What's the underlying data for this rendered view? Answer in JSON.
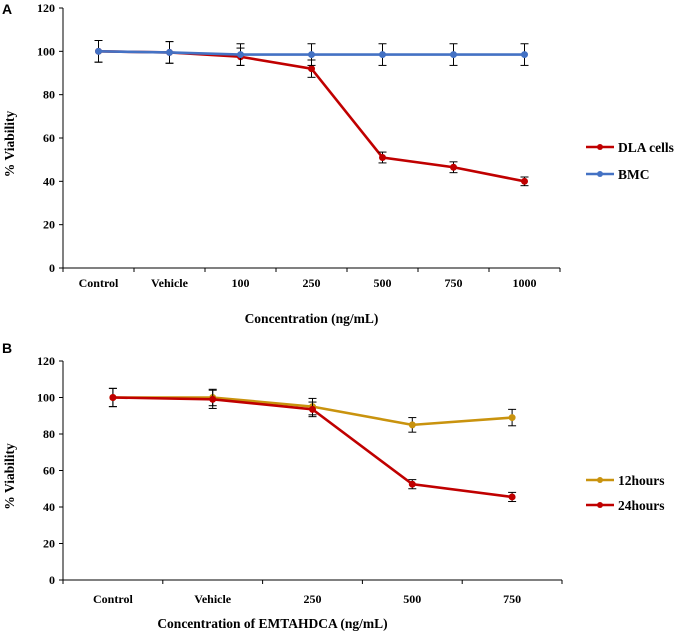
{
  "chart_data": [
    {
      "panel_label": "A",
      "type": "line",
      "categories": [
        "Control",
        "Vehicle",
        "100",
        "250",
        "500",
        "750",
        "1000"
      ],
      "xlabel": "Concentration (ng/mL)",
      "ylabel": "% Viability",
      "ylim": [
        0,
        120
      ],
      "yticks": [
        0,
        20,
        40,
        60,
        80,
        100,
        120
      ],
      "legend_position": "right",
      "series": [
        {
          "name": "DLA cells",
          "color": "#c00000",
          "values": [
            100,
            99.5,
            97.5,
            92,
            51,
            46.5,
            40
          ],
          "errors": [
            5,
            5,
            4,
            4,
            2.5,
            2.5,
            2
          ]
        },
        {
          "name": "BMC",
          "color": "#4472c4",
          "values": [
            100,
            99.5,
            98.5,
            98.5,
            98.5,
            98.5,
            98.5
          ],
          "errors": [
            5,
            5,
            5,
            5,
            5,
            5,
            5
          ]
        }
      ]
    },
    {
      "panel_label": "B",
      "type": "line",
      "categories": [
        "Control",
        "Vehicle",
        "250",
        "500",
        "750"
      ],
      "xlabel": "Concentration of EMTAHDCA (ng/mL)",
      "ylabel": "% Viability",
      "ylim": [
        0,
        120
      ],
      "yticks": [
        0,
        20,
        40,
        60,
        80,
        100,
        120
      ],
      "legend_position": "right",
      "series": [
        {
          "name": "12hours",
          "color": "#c9930e",
          "values": [
            100,
            100,
            95,
            85,
            89
          ],
          "errors": [
            5,
            4.5,
            4.5,
            4,
            4.5
          ]
        },
        {
          "name": "24hours",
          "color": "#c00000",
          "values": [
            100,
            99,
            93.5,
            52.5,
            45.5
          ],
          "errors": [
            5,
            5,
            4,
            2.5,
            2.5
          ]
        }
      ]
    }
  ]
}
